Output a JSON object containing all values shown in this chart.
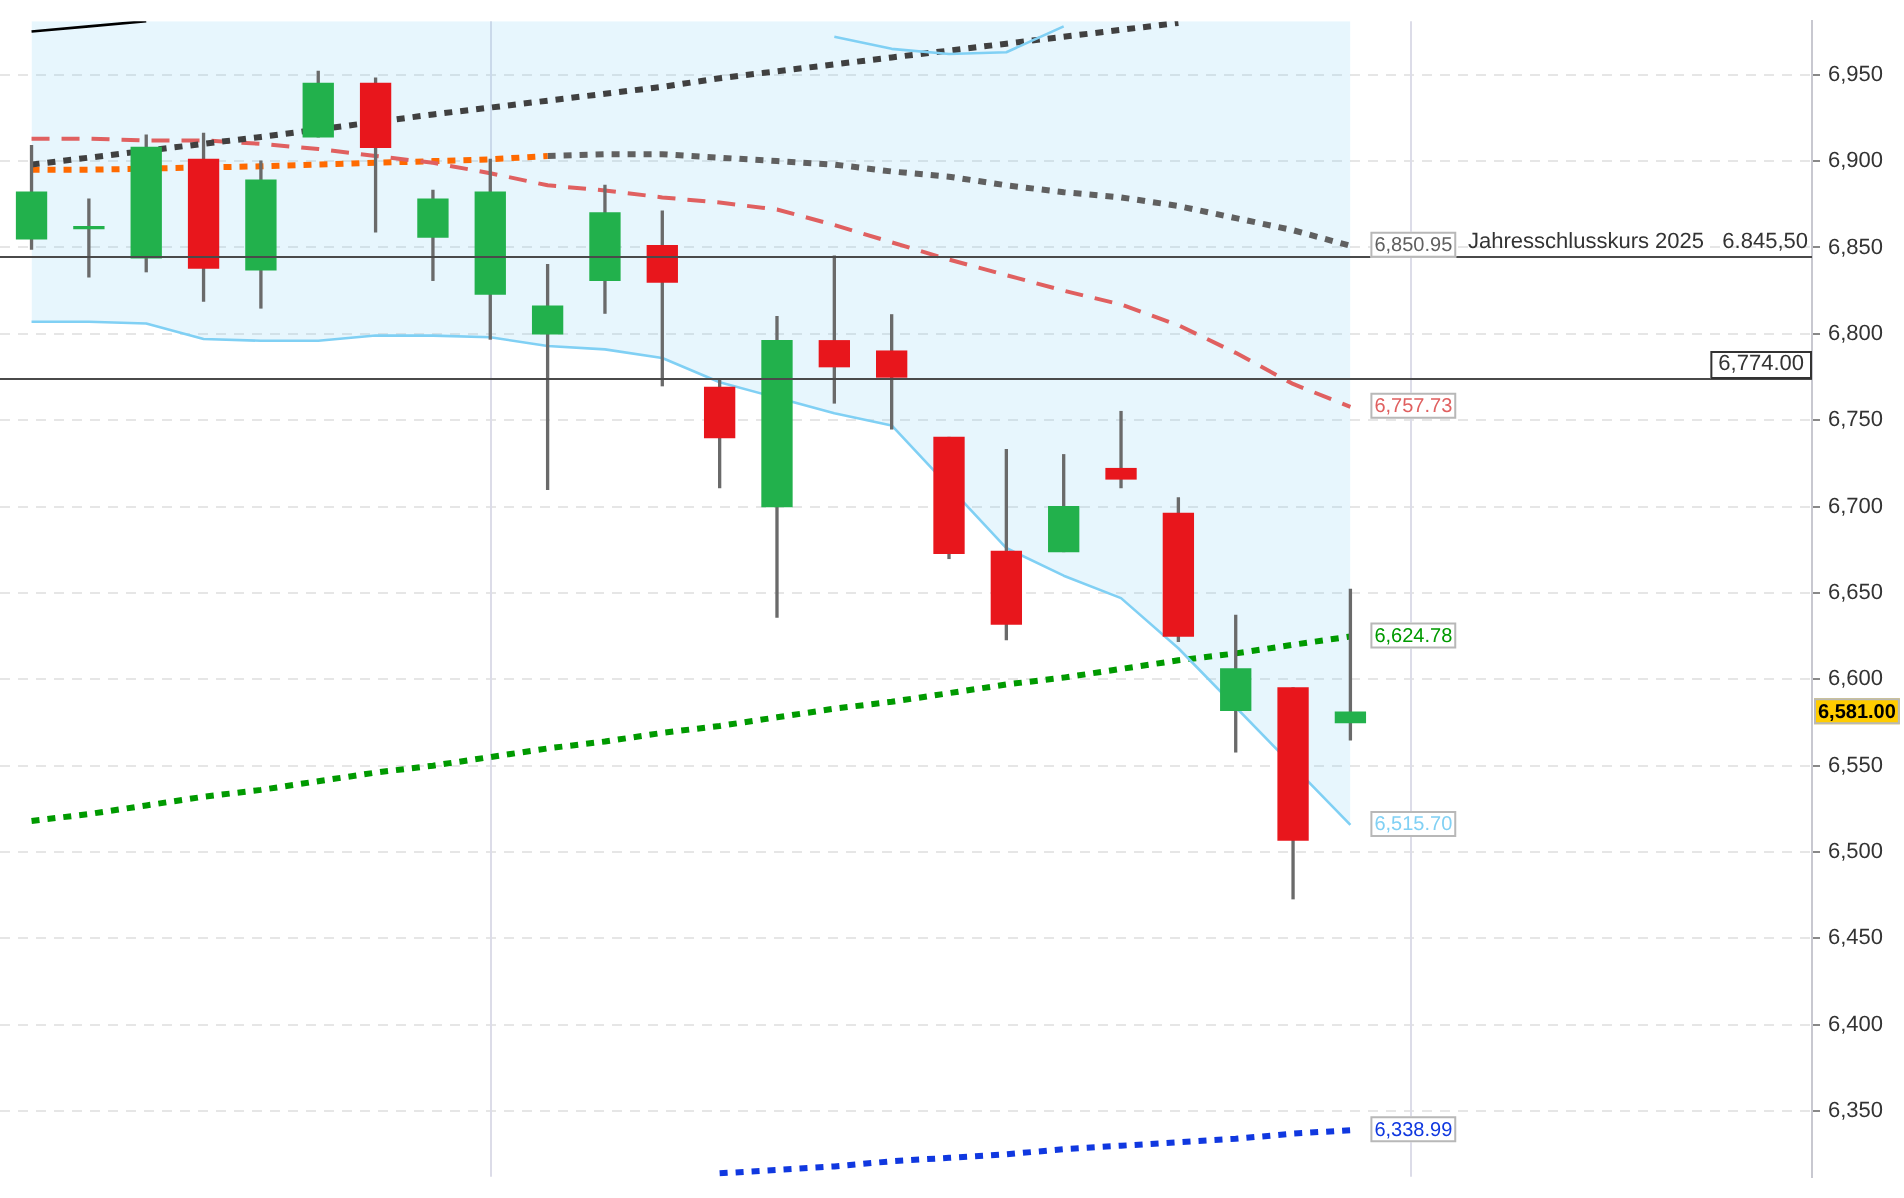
{
  "chart_data": {
    "type": "candlestick",
    "categories": [
      null,
      null,
      null,
      null,
      null,
      null,
      null,
      null,
      null,
      null,
      null,
      null,
      null,
      null,
      null,
      null,
      null,
      null,
      null,
      null,
      null,
      null,
      null,
      null
    ],
    "ohlc": [
      [
        6855,
        6909,
        6849,
        6882
      ],
      [
        6861,
        6878,
        6833,
        6862
      ],
      [
        6844,
        6915,
        6836,
        6908
      ],
      [
        6901,
        6916,
        6819,
        6838
      ],
      [
        6837,
        6900,
        6815,
        6889
      ],
      [
        6914,
        6952,
        6914,
        6945
      ],
      [
        6945,
        6948,
        6859,
        6908
      ],
      [
        6856,
        6883,
        6831,
        6878
      ],
      [
        6823,
        6901,
        6797,
        6882
      ],
      [
        6800,
        6840,
        6710,
        6816
      ],
      [
        6831,
        6886,
        6812,
        6870
      ],
      [
        6851,
        6871,
        6770,
        6830
      ],
      [
        6769,
        6774,
        6711,
        6740
      ],
      [
        6700,
        6810,
        6636,
        6796
      ],
      [
        6796,
        6845,
        6760,
        6781
      ],
      [
        6790,
        6811,
        6745,
        6775
      ],
      [
        6740,
        6740,
        6670,
        6673
      ],
      [
        6674,
        6733,
        6623,
        6632
      ],
      [
        6674,
        6730,
        6674,
        6700
      ],
      [
        6722,
        6755,
        6711,
        6716
      ],
      [
        6696,
        6705,
        6622,
        6625
      ],
      [
        6582,
        6637,
        6558,
        6606
      ],
      [
        6595,
        6595,
        6473,
        6507
      ],
      [
        6575,
        6652,
        6565,
        6581
      ]
    ],
    "colors": [
      "#22b14c",
      "#22b14c",
      "#22b14c",
      "#e8161c",
      "#22b14c",
      "#22b14c",
      "#e8161c",
      "#22b14c",
      "#22b14c",
      "#22b14c",
      "#22b14c",
      "#e8161c",
      "#e8161c",
      "#22b14c",
      "#e8161c",
      "#e8161c",
      "#e8161c",
      "#e8161c",
      "#22b14c",
      "#e8161c",
      "#e8161c",
      "#22b14c",
      "#e8161c",
      "#22b14c"
    ],
    "value_labels": [
      null,
      null,
      null,
      null,
      null,
      null,
      null,
      null,
      null,
      null,
      null,
      null,
      null,
      null,
      null,
      null,
      null,
      null,
      null,
      null,
      null,
      null,
      null,
      "6,581.00"
    ],
    "ylim": [
      6312,
      6981
    ],
    "yticks": [
      {
        "value": 6350,
        "label": "6,350"
      },
      {
        "value": 6400,
        "label": "6,400"
      },
      {
        "value": 6450,
        "label": "6,450"
      },
      {
        "value": 6500,
        "label": "6,500"
      },
      {
        "value": 6550,
        "label": "6,550"
      },
      {
        "value": 6600,
        "label": "6,600"
      },
      {
        "value": 6650,
        "label": "6,650"
      },
      {
        "value": 6700,
        "label": "6,700"
      },
      {
        "value": 6750,
        "label": "6,750"
      },
      {
        "value": 6800,
        "label": "6,800"
      },
      {
        "value": 6850,
        "label": "6,850"
      },
      {
        "value": 6900,
        "label": "6,900"
      },
      {
        "value": 6950,
        "label": "6,950"
      }
    ],
    "tick_labels": "y",
    "grid": "y",
    "legend": false,
    "series": [
      {
        "type": "line",
        "color": "#80d0f4",
        "line_style": "solid",
        "values": [
          6807,
          6807,
          6806,
          6797,
          6796,
          6796,
          6799,
          6799,
          6798,
          6793,
          6791,
          6786,
          6772,
          null,
          6754,
          6747,
          null,
          6676,
          6660,
          6647,
          6618,
          null,
          null,
          6515.7
        ],
        "lower": [
          6807,
          6807,
          6806,
          6797,
          6796,
          6796,
          6799,
          6799,
          6798,
          6793,
          6791,
          6786,
          6772,
          null,
          6754,
          6747,
          null,
          6676,
          6660,
          6647,
          6618,
          null,
          null,
          6515.7
        ],
        "upper": [
          6981,
          6981,
          6981,
          6981,
          6981,
          6981,
          6981,
          6981,
          6981,
          6981,
          6981,
          6981,
          6981,
          null,
          6981,
          6981,
          null,
          6981,
          6981,
          6981,
          6981,
          null,
          null,
          6981
        ],
        "value_labels": [
          null,
          null,
          null,
          null,
          null,
          null,
          null,
          null,
          null,
          null,
          null,
          null,
          null,
          null,
          null,
          null,
          null,
          null,
          null,
          null,
          null,
          null,
          null,
          "6,515.70"
        ]
      },
      {
        "type": "line",
        "color": "#80d0f4",
        "line_style": "solid",
        "values": [
          null,
          null,
          null,
          null,
          null,
          null,
          null,
          null,
          null,
          null,
          null,
          null,
          null,
          null,
          6972,
          6965,
          6962,
          6963,
          6978,
          null,
          null,
          null,
          null,
          null
        ]
      },
      {
        "type": "line",
        "color": "#000000",
        "line_style": "solid",
        "values": [
          6975,
          6978,
          6981,
          null,
          null,
          null,
          null,
          null,
          null,
          null,
          null,
          null,
          null,
          null,
          null,
          null,
          null,
          null,
          null,
          null,
          null,
          null,
          null,
          null
        ]
      },
      {
        "type": "line",
        "color": "#404040",
        "line_style": "dotted",
        "values": [
          6898,
          6902,
          null,
          6910,
          6914,
          null,
          null,
          6927,
          6931,
          6935,
          6939,
          6943,
          6948,
          6952,
          6956,
          6960,
          6964,
          6968,
          6972,
          6976,
          6980,
          null,
          null,
          null
        ]
      },
      {
        "type": "line",
        "color": "#e06060",
        "line_style": "dashed",
        "values": [
          6913,
          6913,
          6912,
          6912,
          6910,
          6907,
          6903,
          6899,
          6893,
          6886,
          6883,
          6879,
          6876,
          6872,
          6863,
          6853,
          6843,
          6834,
          6825,
          6817,
          6805,
          6789,
          6771,
          6757.73
        ],
        "value_labels": [
          null,
          null,
          null,
          null,
          null,
          null,
          null,
          null,
          null,
          null,
          null,
          null,
          null,
          null,
          null,
          null,
          null,
          null,
          null,
          null,
          null,
          null,
          null,
          "6,757.73"
        ]
      },
      {
        "type": "line",
        "color": "#ff6a00",
        "line_style": "dotted",
        "values": [
          6895,
          6895,
          null,
          null,
          6897,
          6898,
          6899,
          6900,
          6901,
          6903,
          null,
          null,
          null,
          null,
          null,
          null,
          null,
          null,
          null,
          null,
          null,
          null,
          null,
          null
        ]
      },
      {
        "type": "line",
        "color": "#606060",
        "line_style": "dotted",
        "values": [
          null,
          null,
          null,
          null,
          null,
          null,
          null,
          null,
          null,
          6903,
          6904,
          6904,
          6902,
          6900,
          6898,
          6894,
          6891,
          6886,
          6882,
          6879,
          6874,
          6867,
          6860,
          6850.95
        ],
        "value_labels": [
          null,
          null,
          null,
          null,
          null,
          null,
          null,
          null,
          null,
          null,
          null,
          null,
          null,
          null,
          null,
          null,
          null,
          null,
          null,
          null,
          null,
          null,
          null,
          "6,850.95"
        ]
      },
      {
        "type": "line",
        "color": "#009a00",
        "line_style": "dotted",
        "values": [
          6518,
          6522,
          6527,
          6532,
          6536,
          6541,
          6546,
          6550,
          6555,
          6560,
          6564,
          6569,
          6573,
          6578,
          6583,
          6587,
          6592,
          6597,
          6601,
          6606,
          6611,
          6615,
          6620,
          6624.78
        ],
        "value_labels": [
          null,
          null,
          null,
          null,
          null,
          null,
          null,
          null,
          null,
          null,
          null,
          null,
          null,
          null,
          null,
          null,
          null,
          null,
          null,
          null,
          null,
          null,
          null,
          "6,624.78"
        ]
      },
      {
        "type": "line",
        "color": "#1038e0",
        "line_style": "dotted",
        "values": [
          null,
          null,
          null,
          null,
          null,
          null,
          null,
          null,
          null,
          null,
          null,
          null,
          6314,
          6316,
          6318,
          6321,
          6323,
          6325,
          6328,
          6330,
          6332,
          6334,
          6337,
          6338.99
        ],
        "value_labels": [
          null,
          null,
          null,
          null,
          null,
          null,
          null,
          null,
          null,
          null,
          null,
          null,
          null,
          null,
          null,
          null,
          null,
          null,
          null,
          null,
          null,
          null,
          null,
          "6,338.99"
        ]
      }
    ],
    "ref_lines": [
      {
        "axis": "y",
        "value": 6845.5,
        "label": "Jahresschlusskurs 2025   6.845,50"
      },
      {
        "axis": "y",
        "value": 6774,
        "label": "6,774.00"
      }
    ]
  }
}
